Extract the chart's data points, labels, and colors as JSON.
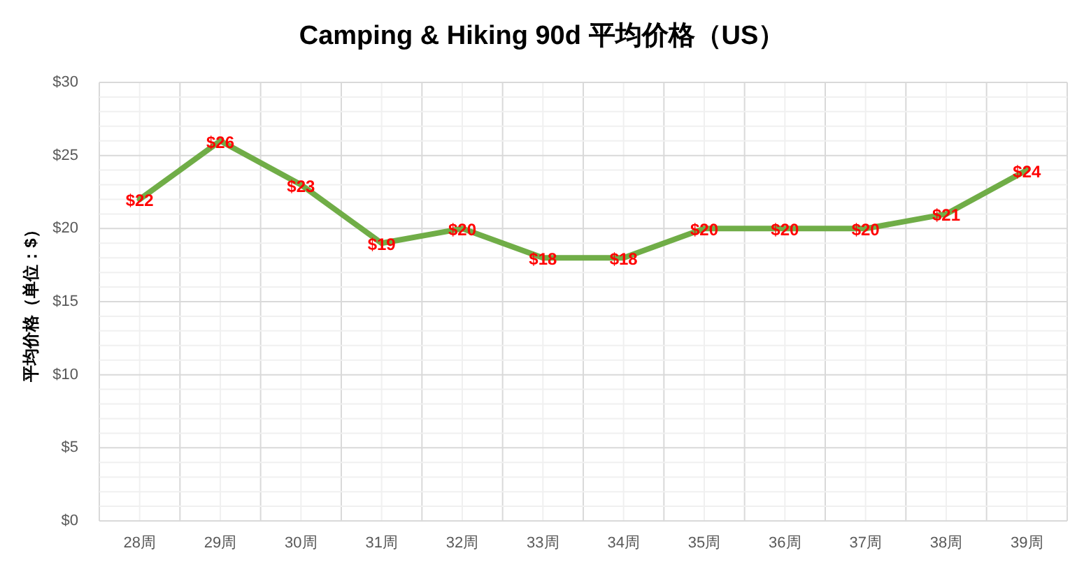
{
  "chart_data": {
    "type": "line",
    "title": "Camping & Hiking 90d 平均价格（US）",
    "ylabel": "平均价格（单位：$）",
    "categories": [
      "28周",
      "29周",
      "30周",
      "31周",
      "32周",
      "33周",
      "34周",
      "35周",
      "36周",
      "37周",
      "38周",
      "39周"
    ],
    "series": [
      {
        "color": "#70ad47",
        "values": [
          22,
          26,
          23,
          19,
          20,
          18,
          18,
          20,
          20,
          20,
          21,
          24
        ],
        "value_labels": [
          "$22",
          "$26",
          "$23",
          "$19",
          "$20",
          "$18",
          "$18",
          "$20",
          "$20",
          "$20",
          "$21",
          "$24"
        ]
      }
    ],
    "ylim": [
      0,
      30
    ],
    "yticks": [
      {
        "value": 0,
        "label": "$0"
      },
      {
        "value": 1,
        "label": null
      },
      {
        "value": 2,
        "label": null
      },
      {
        "value": 3,
        "label": null
      },
      {
        "value": 4,
        "label": null
      },
      {
        "value": 5,
        "label": "$5"
      },
      {
        "value": 6,
        "label": null
      },
      {
        "value": 7,
        "label": null
      },
      {
        "value": 8,
        "label": null
      },
      {
        "value": 9,
        "label": null
      },
      {
        "value": 10,
        "label": "$10"
      },
      {
        "value": 11,
        "label": null
      },
      {
        "value": 12,
        "label": null
      },
      {
        "value": 13,
        "label": null
      },
      {
        "value": 14,
        "label": null
      },
      {
        "value": 15,
        "label": "$15"
      },
      {
        "value": 16,
        "label": null
      },
      {
        "value": 17,
        "label": null
      },
      {
        "value": 18,
        "label": null
      },
      {
        "value": 19,
        "label": null
      },
      {
        "value": 20,
        "label": "$20"
      },
      {
        "value": 21,
        "label": null
      },
      {
        "value": 22,
        "label": null
      },
      {
        "value": 23,
        "label": null
      },
      {
        "value": 24,
        "label": null
      },
      {
        "value": 25,
        "label": "$25"
      },
      {
        "value": 26,
        "label": null
      },
      {
        "value": 27,
        "label": null
      },
      {
        "value": 28,
        "label": null
      },
      {
        "value": 29,
        "label": null
      },
      {
        "value": 30,
        "label": "$30"
      }
    ],
    "grid": true,
    "line_style": "solid"
  }
}
